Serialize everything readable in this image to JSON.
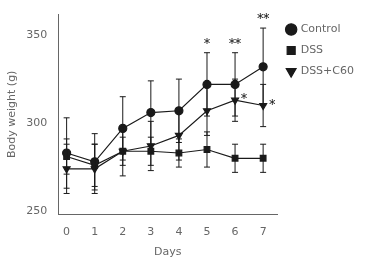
{
  "chart_data": {
    "type": "line",
    "x": [
      0,
      1,
      2,
      3,
      4,
      5,
      6,
      7
    ],
    "series": [
      {
        "name": "Control",
        "color": "#1a1a1a",
        "marker": "circle",
        "line_style": "solid",
        "values": [
          283,
          278,
          297,
          306,
          307,
          322,
          322,
          332
        ],
        "errors": [
          20,
          16,
          18,
          18,
          18,
          18,
          18,
          22
        ]
      },
      {
        "name": "DSS",
        "color": "#1a1a1a",
        "marker": "square",
        "line_style": "solid",
        "values": [
          281,
          276,
          284,
          284,
          283,
          285,
          280,
          280
        ],
        "errors": [
          10,
          12,
          8,
          8,
          8,
          10,
          8,
          8
        ]
      },
      {
        "name": "DSS+C60",
        "color": "#1a1a1a",
        "marker": "triangle_down",
        "line_style": "solid",
        "values": [
          274,
          274,
          284,
          287,
          293,
          307,
          313,
          310
        ],
        "errors": [
          14,
          14,
          14,
          14,
          14,
          14,
          12,
          12
        ]
      }
    ],
    "xlabel": "Days",
    "ylabel": "Body weight (g)",
    "xlim": [
      -0.3,
      7.5
    ],
    "xticks": [
      0,
      1,
      2,
      3,
      4,
      5,
      6,
      7
    ],
    "ylim": [
      248,
      362
    ],
    "yticks": [
      250,
      300,
      350
    ],
    "grid": false,
    "legend": "right",
    "annotations": [
      {
        "text": "*",
        "x": 5,
        "series": "Control",
        "position": "above"
      },
      {
        "text": "**",
        "x": 6,
        "series": "Control",
        "position": "above"
      },
      {
        "text": "**",
        "x": 7,
        "series": "Control",
        "position": "above"
      },
      {
        "text": "*",
        "x": 6,
        "series": "DSS+C60",
        "position": "right"
      },
      {
        "text": "*",
        "x": 7,
        "series": "DSS+C60",
        "position": "right"
      }
    ]
  }
}
